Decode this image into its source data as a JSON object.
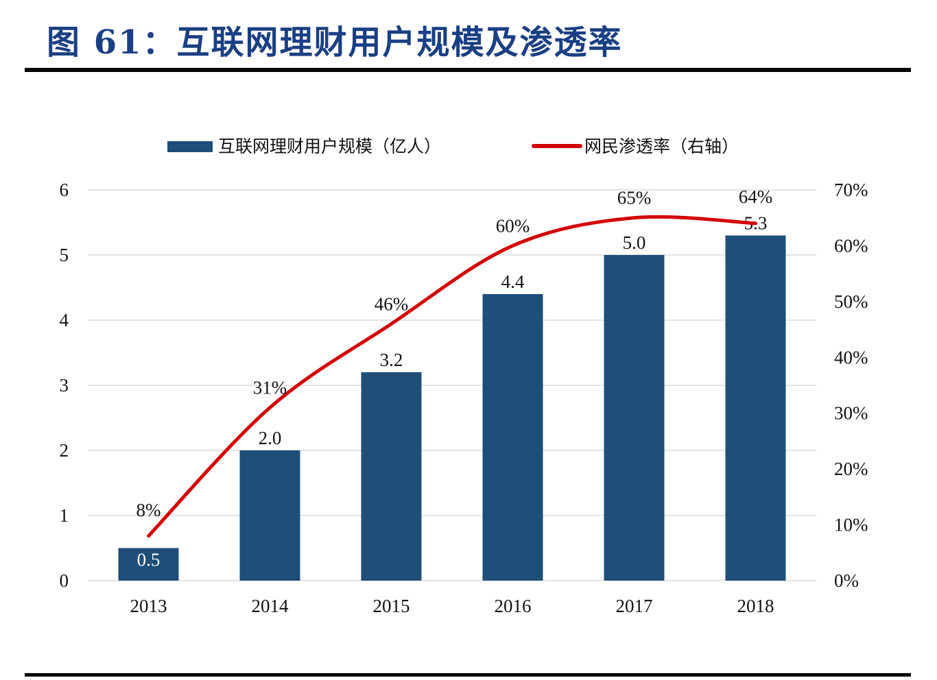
{
  "title": "图 61：互联网理财用户规模及渗透率",
  "chart_data": {
    "type": "bar+line",
    "categories": [
      "2013",
      "2014",
      "2015",
      "2016",
      "2017",
      "2018"
    ],
    "series": [
      {
        "name": "互联网理财用户规模（亿人）",
        "type": "bar",
        "axis": "left",
        "values": [
          0.5,
          2.0,
          3.2,
          4.4,
          5.0,
          5.3
        ],
        "labels": [
          "0.5",
          "2.0",
          "3.2",
          "4.4",
          "5.0",
          "5.3"
        ],
        "color": "#1f4e79"
      },
      {
        "name": "网民渗透率（右轴）",
        "type": "line",
        "axis": "right",
        "values": [
          8,
          31,
          46,
          60,
          65,
          64
        ],
        "labels": [
          "8%",
          "31%",
          "46%",
          "60%",
          "65%",
          "64%"
        ],
        "color": "#d40000"
      }
    ],
    "left_axis": {
      "ylim": [
        0,
        6
      ],
      "ticks": [
        "0",
        "1",
        "2",
        "3",
        "4",
        "5",
        "6"
      ]
    },
    "right_axis": {
      "ylim": [
        0,
        70
      ],
      "ticks": [
        "0%",
        "10%",
        "20%",
        "30%",
        "40%",
        "50%",
        "60%",
        "70%"
      ]
    },
    "grid": true,
    "legend": "top"
  }
}
